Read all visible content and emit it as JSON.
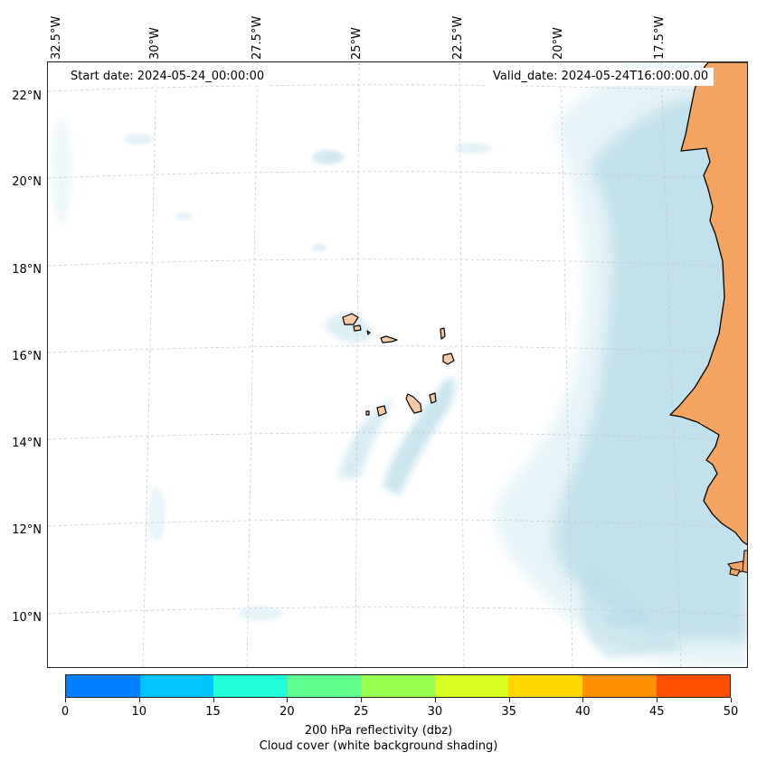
{
  "map": {
    "lon_labels": [
      "32.5°W",
      "30°W",
      "27.5°W",
      "25°W",
      "22.5°W",
      "20°W",
      "17.5°W"
    ],
    "lat_labels": [
      "22°N",
      "20°N",
      "18°N",
      "16°N",
      "14°N",
      "12°N",
      "10°N"
    ],
    "start_date": "Start date: 2024-05-24_00:00:00",
    "valid_date": "Valid_date: 2024-05-24T16:00:00.00",
    "land_color": "#f4a460",
    "cloud_color": "#add8e6",
    "coastline_color": "#000000",
    "grid_style": "dashed"
  },
  "colorbar": {
    "ticks": [
      "0",
      "10",
      "15",
      "20",
      "25",
      "30",
      "35",
      "40",
      "45",
      "50"
    ],
    "colors": [
      "#0080ff",
      "#00c4ff",
      "#20ffd8",
      "#60ff90",
      "#98ff50",
      "#d8ff20",
      "#ffd800",
      "#ff9000",
      "#ff5000"
    ],
    "label": "200 hPa reflectivity (dbz)",
    "sublabel": "Cloud cover (white background shading)"
  }
}
